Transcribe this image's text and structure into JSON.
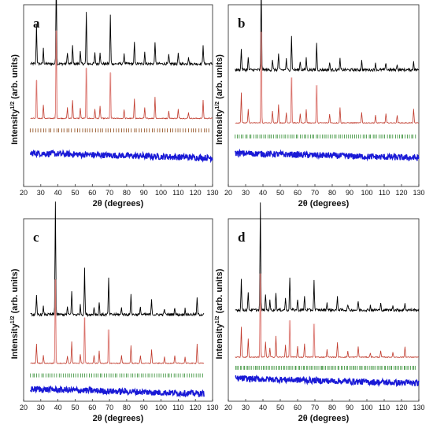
{
  "chart_data": [
    {
      "type": "line",
      "panel_label": "a",
      "xlabel": "2θ (degrees)",
      "ylabel_main": "Intensity",
      "ylabel_sup": "1/2",
      "ylabel_tail": " (arb. units)",
      "xlim": [
        20,
        130
      ],
      "x_ticks": [
        20,
        30,
        40,
        50,
        60,
        70,
        80,
        90,
        100,
        110,
        120,
        130
      ],
      "y_ticks_shown": false,
      "series": [
        {
          "role": "observed",
          "color": "#000000",
          "baseline": 0.66,
          "x_end": 130,
          "peaks": [
            [
              27.5,
              0.26
            ],
            [
              31.5,
              0.1
            ],
            [
              39.0,
              0.58
            ],
            [
              45.5,
              0.08
            ],
            [
              48.5,
              0.12
            ],
            [
              53.0,
              0.08
            ],
            [
              56.5,
              0.34
            ],
            [
              61.5,
              0.07
            ],
            [
              64.5,
              0.08
            ],
            [
              70.5,
              0.32
            ],
            [
              78.5,
              0.07
            ],
            [
              84.5,
              0.14
            ],
            [
              90.5,
              0.08
            ],
            [
              96.5,
              0.15
            ],
            [
              104.5,
              0.06
            ],
            [
              110.0,
              0.07
            ],
            [
              116.0,
              0.05
            ],
            [
              124.5,
              0.13
            ]
          ]
        },
        {
          "role": "calculated",
          "color": "#c0392b",
          "baseline": 0.3,
          "x_end": 130,
          "peaks": [
            [
              27.5,
              0.25
            ],
            [
              31.5,
              0.09
            ],
            [
              39.0,
              0.58
            ],
            [
              45.5,
              0.07
            ],
            [
              48.5,
              0.12
            ],
            [
              53.0,
              0.07
            ],
            [
              56.5,
              0.33
            ],
            [
              61.5,
              0.06
            ],
            [
              64.5,
              0.08
            ],
            [
              70.5,
              0.3
            ],
            [
              78.5,
              0.06
            ],
            [
              84.5,
              0.13
            ],
            [
              90.5,
              0.07
            ],
            [
              96.5,
              0.14
            ],
            [
              104.5,
              0.05
            ],
            [
              110.0,
              0.06
            ],
            [
              116.0,
              0.04
            ],
            [
              124.5,
              0.12
            ]
          ]
        },
        {
          "role": "difference",
          "color": "#1a1ad6",
          "baseline": 0.07,
          "x_end": 130,
          "peaks": []
        }
      ],
      "bragg_marks": {
        "color": "#8b4513",
        "y": 0.22,
        "x_start": 24,
        "x_end": 128,
        "count": 70
      }
    },
    {
      "type": "line",
      "panel_label": "b",
      "xlabel": "2θ (degrees)",
      "ylabel_main": "Intensity",
      "ylabel_sup": "1/2",
      "ylabel_tail": " (arb. units)",
      "xlim": [
        20,
        130
      ],
      "x_ticks": [
        20,
        30,
        40,
        50,
        60,
        70,
        80,
        90,
        100,
        110,
        120,
        130
      ],
      "y_ticks_shown": false,
      "series": [
        {
          "role": "observed",
          "color": "#000000",
          "baseline": 0.62,
          "x_end": 130,
          "peaks": [
            [
              27.5,
              0.14
            ],
            [
              31.5,
              0.08
            ],
            [
              39.0,
              0.56
            ],
            [
              45.5,
              0.07
            ],
            [
              49.0,
              0.11
            ],
            [
              53.5,
              0.07
            ],
            [
              56.5,
              0.22
            ],
            [
              61.5,
              0.06
            ],
            [
              65.0,
              0.08
            ],
            [
              71.0,
              0.18
            ],
            [
              78.5,
              0.05
            ],
            [
              84.5,
              0.07
            ],
            [
              97.0,
              0.06
            ],
            [
              105.0,
              0.05
            ],
            [
              111.0,
              0.05
            ],
            [
              117.5,
              0.04
            ],
            [
              127.0,
              0.06
            ]
          ]
        },
        {
          "role": "calculated",
          "color": "#c0392b",
          "baseline": 0.27,
          "x_end": 130,
          "peaks": [
            [
              27.5,
              0.2
            ],
            [
              31.5,
              0.09
            ],
            [
              39.0,
              0.6
            ],
            [
              45.5,
              0.08
            ],
            [
              49.0,
              0.12
            ],
            [
              53.5,
              0.07
            ],
            [
              56.5,
              0.3
            ],
            [
              61.5,
              0.06
            ],
            [
              65.0,
              0.09
            ],
            [
              71.0,
              0.25
            ],
            [
              78.5,
              0.06
            ],
            [
              84.5,
              0.1
            ],
            [
              97.0,
              0.07
            ],
            [
              105.0,
              0.05
            ],
            [
              111.0,
              0.06
            ],
            [
              117.5,
              0.05
            ],
            [
              127.0,
              0.09
            ]
          ]
        },
        {
          "role": "difference",
          "color": "#1a1ad6",
          "baseline": 0.07,
          "x_end": 130,
          "peaks": []
        }
      ],
      "bragg_marks": {
        "color": "#2e8b2e",
        "y": 0.18,
        "x_start": 24,
        "x_end": 128,
        "count": 90
      }
    },
    {
      "type": "line",
      "panel_label": "c",
      "xlabel": "2θ (degrees)",
      "ylabel_main": "Intensity",
      "ylabel_sup": "1/2",
      "ylabel_tail": " (arb. units)",
      "xlim": [
        20,
        130
      ],
      "x_ticks": [
        20,
        30,
        40,
        50,
        60,
        70,
        80,
        90,
        100,
        110,
        120,
        130
      ],
      "y_ticks_shown": false,
      "series": [
        {
          "role": "observed",
          "color": "#000000",
          "baseline": 0.42,
          "x_end": 125,
          "peaks": [
            [
              27.5,
              0.12
            ],
            [
              31.5,
              0.05
            ],
            [
              38.5,
              0.75
            ],
            [
              45.5,
              0.05
            ],
            [
              48.0,
              0.16
            ],
            [
              53.0,
              0.06
            ],
            [
              55.5,
              0.3
            ],
            [
              61.0,
              0.05
            ],
            [
              64.0,
              0.08
            ],
            [
              69.5,
              0.24
            ],
            [
              77.0,
              0.05
            ],
            [
              82.5,
              0.14
            ],
            [
              88.0,
              0.05
            ],
            [
              94.5,
              0.1
            ],
            [
              102.0,
              0.04
            ],
            [
              108.0,
              0.05
            ],
            [
              114.0,
              0.04
            ],
            [
              121.0,
              0.11
            ]
          ]
        },
        {
          "role": "calculated",
          "color": "#c0392b",
          "baseline": 0.1,
          "x_end": 125,
          "peaks": [
            [
              27.5,
              0.13
            ],
            [
              31.5,
              0.05
            ],
            [
              38.5,
              0.55
            ],
            [
              45.5,
              0.05
            ],
            [
              48.0,
              0.14
            ],
            [
              53.0,
              0.06
            ],
            [
              55.5,
              0.3
            ],
            [
              61.0,
              0.05
            ],
            [
              64.0,
              0.08
            ],
            [
              69.5,
              0.22
            ],
            [
              77.0,
              0.05
            ],
            [
              82.5,
              0.12
            ],
            [
              88.0,
              0.05
            ],
            [
              94.5,
              0.09
            ],
            [
              102.0,
              0.04
            ],
            [
              108.0,
              0.05
            ],
            [
              114.0,
              0.04
            ],
            [
              121.0,
              0.13
            ]
          ]
        },
        {
          "role": "difference",
          "color": "#1a1ad6",
          "baseline": -0.07,
          "x_end": 125,
          "peaks": []
        }
      ],
      "bragg_marks": {
        "color": "#2e8b2e",
        "y": 0.02,
        "x_start": 24,
        "x_end": 124,
        "count": 80
      }
    },
    {
      "type": "line",
      "panel_label": "d",
      "xlabel": "2θ (degrees)",
      "ylabel_main": "Intensity",
      "ylabel_sup": "1/2",
      "ylabel_tail": " (arb. units)",
      "xlim": [
        20,
        130
      ],
      "x_ticks": [
        20,
        30,
        40,
        50,
        60,
        70,
        80,
        90,
        100,
        110,
        120,
        130
      ],
      "y_ticks_shown": false,
      "series": [
        {
          "role": "observed",
          "color": "#000000",
          "baseline": 0.45,
          "x_end": 130,
          "peaks": [
            [
              27.5,
              0.2
            ],
            [
              31.5,
              0.12
            ],
            [
              38.5,
              0.7
            ],
            [
              41.5,
              0.1
            ],
            [
              44.0,
              0.06
            ],
            [
              47.5,
              0.12
            ],
            [
              53.0,
              0.08
            ],
            [
              55.5,
              0.22
            ],
            [
              60.0,
              0.07
            ],
            [
              64.0,
              0.09
            ],
            [
              69.5,
              0.19
            ],
            [
              77.0,
              0.05
            ],
            [
              83.0,
              0.09
            ],
            [
              89.0,
              0.04
            ],
            [
              95.0,
              0.06
            ],
            [
              102.0,
              0.03
            ],
            [
              108.0,
              0.04
            ],
            [
              115.0,
              0.03
            ],
            [
              122.0,
              0.05
            ]
          ]
        },
        {
          "role": "calculated",
          "color": "#c0392b",
          "baseline": 0.14,
          "x_end": 130,
          "peaks": [
            [
              27.5,
              0.2
            ],
            [
              31.5,
              0.12
            ],
            [
              38.5,
              0.55
            ],
            [
              41.5,
              0.1
            ],
            [
              44.0,
              0.06
            ],
            [
              47.5,
              0.14
            ],
            [
              53.0,
              0.08
            ],
            [
              55.5,
              0.24
            ],
            [
              60.0,
              0.07
            ],
            [
              64.0,
              0.09
            ],
            [
              69.5,
              0.22
            ],
            [
              77.0,
              0.05
            ],
            [
              83.0,
              0.1
            ],
            [
              89.0,
              0.04
            ],
            [
              95.0,
              0.07
            ],
            [
              102.0,
              0.03
            ],
            [
              108.0,
              0.04
            ],
            [
              115.0,
              0.03
            ],
            [
              122.0,
              0.07
            ]
          ]
        },
        {
          "role": "difference",
          "color": "#1a1ad6",
          "baseline": 0.0,
          "x_end": 130,
          "peaks": []
        }
      ],
      "bragg_marks": {
        "color": "#2e8b2e",
        "y": 0.07,
        "x_start": 24,
        "x_end": 128,
        "count": 110
      }
    }
  ]
}
